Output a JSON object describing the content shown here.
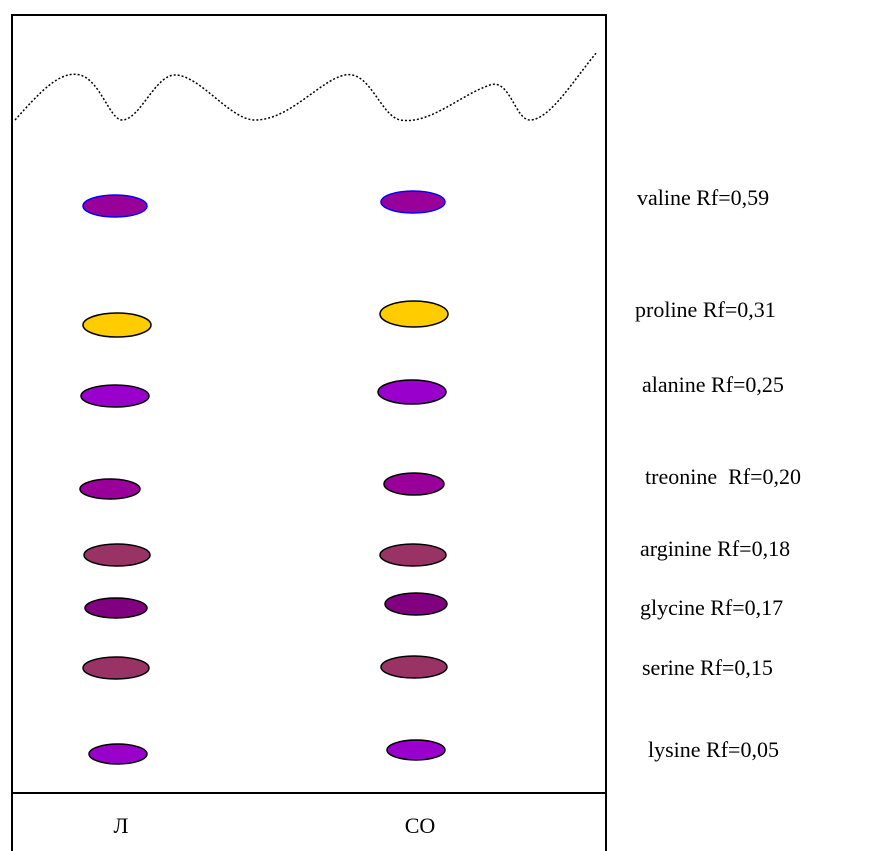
{
  "lanes": [
    "Л",
    "СО"
  ],
  "spots": [
    {
      "label": "valine Rf=0,59"
    },
    {
      "label": "proline Rf=0,31"
    },
    {
      "label": "alanine Rf=0,25"
    },
    {
      "label": "treonine  Rf=0,20"
    },
    {
      "label": "arginine Rf=0,18"
    },
    {
      "label": "glycine Rf=0,17"
    },
    {
      "label": "serine Rf=0,15"
    },
    {
      "label": "lysine Rf=0,05"
    }
  ]
}
